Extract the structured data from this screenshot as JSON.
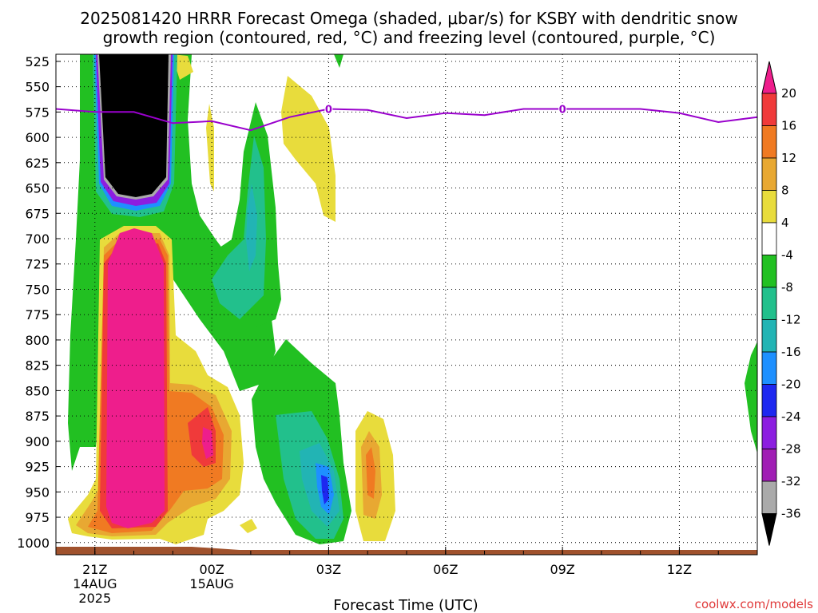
{
  "chart_data": {
    "type": "heatmap",
    "title_line1": "2025081420 HRRR Forecast Omega (shaded, μbar/s) for KSBY with dendritic snow",
    "title_line2": "growth region (contoured, red, °C) and freezing level (contoured, purple, °C)",
    "xlabel": "Forecast Time (UTC)",
    "x_ticks": [
      {
        "label": "21Z",
        "sub1": "14AUG",
        "sub2": "2025",
        "hour": 0
      },
      {
        "label": "00Z",
        "sub1": "15AUG",
        "sub2": "",
        "hour": 3
      },
      {
        "label": "03Z",
        "sub1": "",
        "sub2": "",
        "hour": 6
      },
      {
        "label": "06Z",
        "sub1": "",
        "sub2": "",
        "hour": 9
      },
      {
        "label": "09Z",
        "sub1": "",
        "sub2": "",
        "hour": 12
      },
      {
        "label": "12Z",
        "sub1": "",
        "sub2": "",
        "hour": 15
      }
    ],
    "x_range_hours": [
      -1,
      17
    ],
    "y_range_mb": [
      518,
      1012
    ],
    "y_ticks": [
      525,
      550,
      575,
      600,
      625,
      650,
      675,
      700,
      725,
      750,
      775,
      800,
      825,
      850,
      875,
      900,
      925,
      950,
      975,
      1000
    ],
    "grid": "dotted",
    "colorbar": {
      "labels": [
        "20",
        "16",
        "12",
        "8",
        "4",
        "-4",
        "-8",
        "-12",
        "-16",
        "-20",
        "-24",
        "-28",
        "-32",
        "-36"
      ],
      "colors": [
        "#ee1e8c",
        "#f03a3a",
        "#f07a22",
        "#e8a832",
        "#e8dc3c",
        "#ffffff",
        "#22c022",
        "#22c08c",
        "#22b4b4",
        "#1e90ff",
        "#1e28f0",
        "#8c1ee0",
        "#a01eb4",
        "#aaaaaa",
        "#000000"
      ]
    },
    "freezing_level": {
      "label": "0",
      "color": "#9900cc",
      "points": [
        [
          -1,
          572
        ],
        [
          0,
          575
        ],
        [
          1,
          575
        ],
        [
          2,
          586
        ],
        [
          3,
          584
        ],
        [
          4,
          593
        ],
        [
          5,
          580
        ],
        [
          6,
          572
        ],
        [
          7,
          573
        ],
        [
          8,
          581
        ],
        [
          9,
          576
        ],
        [
          10,
          578
        ],
        [
          11,
          572
        ],
        [
          12,
          572
        ],
        [
          13,
          572
        ],
        [
          14,
          572
        ],
        [
          15,
          576
        ],
        [
          16,
          585
        ],
        [
          17,
          580
        ]
      ]
    },
    "credit": "coolwx.com/models"
  }
}
